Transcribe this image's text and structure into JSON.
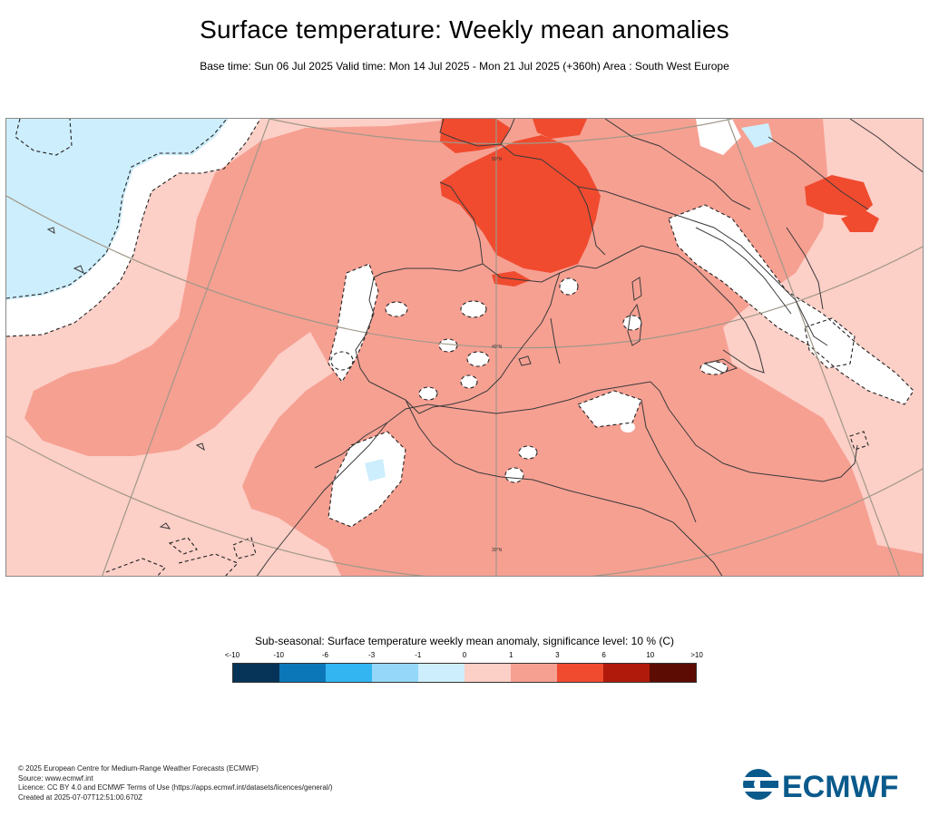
{
  "header": {
    "title": "Surface temperature: Weekly mean anomalies",
    "subtitle": "Base time: Sun 06 Jul 2025 Valid time: Mon 14 Jul 2025 - Mon 21 Jul 2025 (+360h) Area : South West Europe"
  },
  "map": {
    "lat_labels": [
      "50°N",
      "40°N",
      "30°N"
    ],
    "colors": {
      "land_border": "#3a3a3a",
      "graticule": "#a09888",
      "pos_1_3": "#fccfc7",
      "pos_3_6": "#f6a092",
      "pos_6_10": "#f04b2f",
      "neg_0_1": "#cdeefc",
      "neutral": "#ffffff"
    }
  },
  "legend": {
    "title": "Sub-seasonal: Surface temperature weekly mean anomaly, significance level: 10 % (C)",
    "labels": [
      "<-10",
      "-10",
      "-6",
      "-3",
      "-1",
      "0",
      "1",
      "3",
      "6",
      "10",
      ">10"
    ],
    "colors": [
      "#063458",
      "#0c77b8",
      "#33b5f2",
      "#95d7f8",
      "#cdeefc",
      "#fccfc7",
      "#f6a092",
      "#f04b2f",
      "#b01a0a",
      "#5d0c04"
    ]
  },
  "footer": {
    "lines": [
      "© 2025 European Centre for Medium-Range Weather Forecasts (ECMWF)",
      "Source: www.ecmwf.int",
      "Licence: CC BY 4.0 and ECMWF Terms of Use (https://apps.ecmwf.int/datasets/licences/general/)",
      "Created at 2025-07-07T12:51:00.670Z"
    ]
  },
  "logo": {
    "text": "ECMWF",
    "color": "#0a5a8c"
  }
}
